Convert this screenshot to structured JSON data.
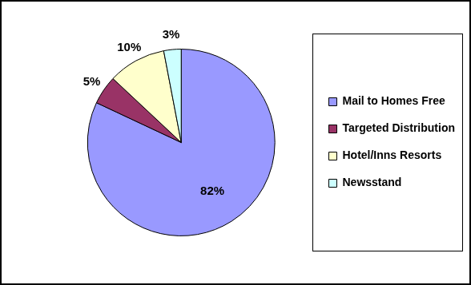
{
  "chart_data": {
    "type": "pie",
    "categories": [
      "Mail to Homes Free",
      "Targeted Distribution",
      "Hotel/Inns Resorts",
      "Newsstand"
    ],
    "values": [
      82,
      5,
      10,
      3
    ],
    "value_labels": [
      "82%",
      "5%",
      "10%",
      "3%"
    ],
    "colors": [
      "#9999ff",
      "#993366",
      "#ffffcc",
      "#ccffff"
    ],
    "legend": "right",
    "data_labels": true
  }
}
